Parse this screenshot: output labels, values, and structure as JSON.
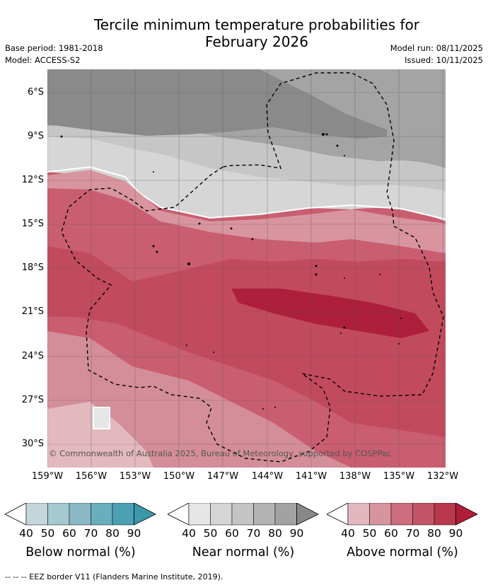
{
  "title_line1": "Tercile minimum temperature probabilities for",
  "title_line2": "February 2026",
  "base_period": "Base period: 1981-2018",
  "model": "Model: ACCESS-S2",
  "model_run": "Model run: 08/11/2025",
  "issued": "Issued: 10/11/2025",
  "copyright": "© Commonwealth of Australia 2025, Bureau of Meteorology, supported by COSPPac",
  "lat_labels": [
    "6°S",
    "9°S",
    "12°S",
    "15°S",
    "18°S",
    "21°S",
    "24°S",
    "27°S",
    "30°S"
  ],
  "lon_labels": [
    "159°W",
    "156°W",
    "153°W",
    "150°W",
    "147°W",
    "144°W",
    "141°W",
    "138°W",
    "135°W",
    "132°W"
  ],
  "colorbars": [
    {
      "title": "Below normal (%)",
      "ticks": [
        "40",
        "50",
        "60",
        "70",
        "80",
        "90"
      ],
      "colors": [
        "#ffffff",
        "#c2d6dc",
        "#a6c8d0",
        "#8ab9c5",
        "#6aaebd",
        "#4aa1b3",
        "#3b97aa"
      ]
    },
    {
      "title": "Near normal (%)",
      "ticks": [
        "40",
        "50",
        "60",
        "70",
        "80",
        "90"
      ],
      "colors": [
        "#ffffff",
        "#e6e6e6",
        "#d5d5d5",
        "#c4c4c4",
        "#b3b3b3",
        "#a2a2a2",
        "#888888"
      ]
    },
    {
      "title": "Above normal (%)",
      "ticks": [
        "40",
        "50",
        "60",
        "70",
        "80",
        "90"
      ],
      "colors": [
        "#ffffff",
        "#e2b7bf",
        "#d6959e",
        "#cc6e7d",
        "#c45566",
        "#b8384b",
        "#b01d3a"
      ]
    }
  ],
  "footer": "-- -- -- EEZ border V11 (Flanders Marine Institute, 2019)."
}
